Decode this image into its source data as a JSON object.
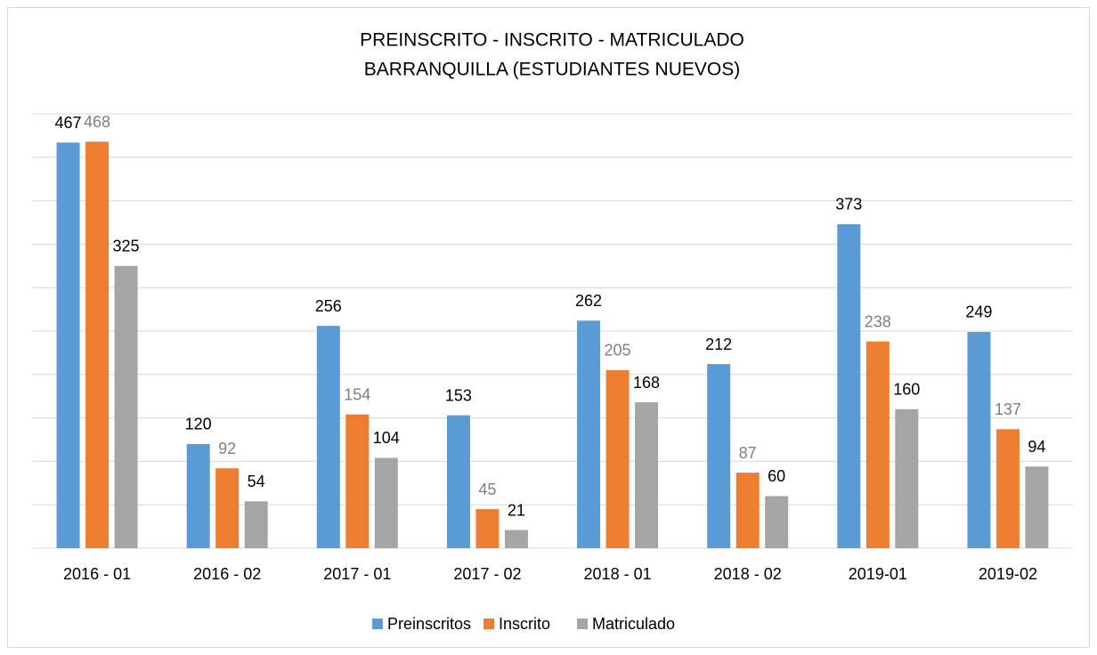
{
  "chart_data": {
    "type": "bar",
    "title": "PREINSCRITO - INSCRITO - MATRICULADO",
    "subtitle": "BARRANQUILLA (ESTUDIANTES NUEVOS)",
    "categories": [
      "2016 - 01",
      "2016 - 02",
      "2017 - 01",
      "2017 - 02",
      "2018 - 01",
      "2018 - 02",
      "2019-01",
      "2019-02"
    ],
    "series": [
      {
        "name": "Preinscritos",
        "color": "#5b9bd5",
        "values": [
          467,
          120,
          256,
          153,
          262,
          212,
          373,
          249
        ]
      },
      {
        "name": "Inscrito",
        "color": "#ed7d31",
        "values": [
          468,
          92,
          154,
          45,
          205,
          87,
          238,
          137
        ]
      },
      {
        "name": "Matriculado",
        "color": "#a5a5a5",
        "values": [
          325,
          54,
          104,
          21,
          168,
          60,
          160,
          94
        ]
      }
    ],
    "ylim": [
      0,
      500
    ],
    "yticks": [
      0,
      50,
      100,
      150,
      200,
      250,
      300,
      350,
      400,
      450,
      500
    ],
    "grid": true,
    "legend": "bottom"
  }
}
